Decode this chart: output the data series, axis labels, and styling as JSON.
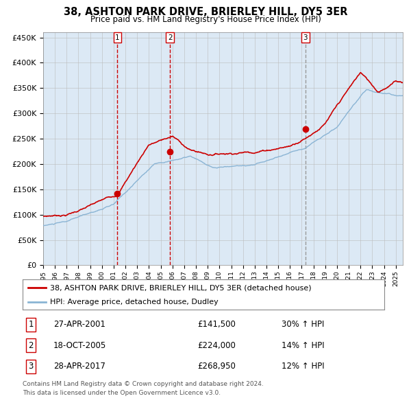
{
  "title": "38, ASHTON PARK DRIVE, BRIERLEY HILL, DY5 3ER",
  "subtitle": "Price paid vs. HM Land Registry's House Price Index (HPI)",
  "legend_line1": "38, ASHTON PARK DRIVE, BRIERLEY HILL, DY5 3ER (detached house)",
  "legend_line2": "HPI: Average price, detached house, Dudley",
  "transactions": [
    {
      "num": 1,
      "date": "27-APR-2001",
      "price": 141500,
      "price_str": "£141,500",
      "pct": "30%",
      "dir": "↑"
    },
    {
      "num": 2,
      "date": "18-OCT-2005",
      "price": 224000,
      "price_str": "£224,000",
      "pct": "14%",
      "dir": "↑"
    },
    {
      "num": 3,
      "date": "28-APR-2017",
      "price": 268950,
      "price_str": "£268,950",
      "pct": "12%",
      "dir": "↑"
    }
  ],
  "transaction_dates_decimal": [
    2001.32,
    2005.8,
    2017.32
  ],
  "footer_line1": "Contains HM Land Registry data © Crown copyright and database right 2024.",
  "footer_line2": "This data is licensed under the Open Government Licence v3.0.",
  "red_color": "#cc0000",
  "blue_color": "#8ab4d4",
  "bg_color": "#dce9f5",
  "grid_color": "#bbbbbb",
  "vline_color_red": "#cc0000",
  "vline_color_gray": "#999999",
  "ylim": [
    0,
    460000
  ],
  "yticks": [
    0,
    50000,
    100000,
    150000,
    200000,
    250000,
    300000,
    350000,
    400000,
    450000
  ],
  "xlim_start": 1995.0,
  "xlim_end": 2025.6,
  "xtick_years": [
    1995,
    1996,
    1997,
    1998,
    1999,
    2000,
    2001,
    2002,
    2003,
    2004,
    2005,
    2006,
    2007,
    2008,
    2009,
    2010,
    2011,
    2012,
    2013,
    2014,
    2015,
    2016,
    2017,
    2018,
    2019,
    2020,
    2021,
    2022,
    2023,
    2024,
    2025
  ],
  "hpi_seed": 10,
  "prop_seed": 7,
  "steps_per_year": 24
}
